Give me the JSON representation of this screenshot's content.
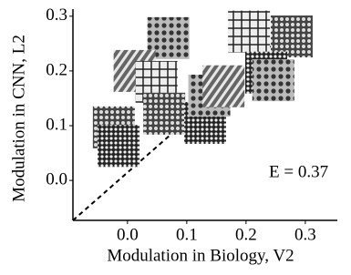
{
  "chart_data": {
    "type": "scatter",
    "x_label": "Modulation in Biology, V2",
    "y_label": "Modulation in CNN, L2",
    "annotation": "E = 0.37",
    "x": [
      -0.023,
      -0.015,
      0.069,
      0.012,
      0.049,
      0.062,
      0.131,
      0.138,
      0.162,
      0.205,
      0.277,
      0.234,
      0.246
    ],
    "values": [
      0.097,
      0.063,
      0.26,
      0.2,
      0.18,
      0.122,
      0.105,
      0.155,
      0.172,
      0.272,
      0.263,
      0.197,
      0.183
    ],
    "xlim": [
      -0.092,
      0.354
    ],
    "ylim": [
      -0.073,
      0.313
    ],
    "xticks": [
      {
        "value": 0,
        "label": "0.0"
      },
      0.1,
      0.2,
      0.3
    ],
    "yticks": [
      {
        "value": 0,
        "label": "0.0"
      },
      0.1,
      0.2,
      0.3
    ]
  }
}
